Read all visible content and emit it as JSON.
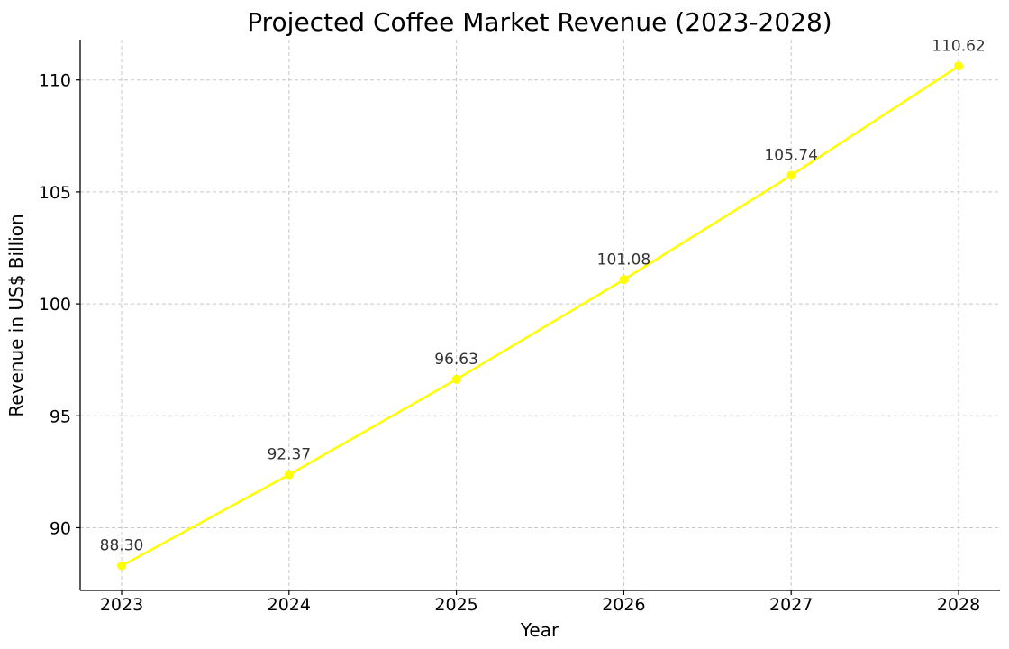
{
  "chart_data": {
    "type": "line",
    "title": "Projected Coffee Market Revenue (2023-2028)",
    "xlabel": "Year",
    "ylabel": "Revenue in US$ Billion",
    "x": [
      "2023",
      "2024",
      "2025",
      "2026",
      "2027",
      "2028"
    ],
    "series": [
      {
        "values": [
          88.3,
          92.37,
          96.63,
          101.08,
          105.74,
          110.62
        ],
        "labels": [
          "88.30",
          "92.37",
          "96.63",
          "101.08",
          "105.74",
          "110.62"
        ],
        "color": "#ffff00"
      }
    ],
    "yticks": [
      90,
      95,
      100,
      105,
      110
    ],
    "ylim": [
      87.2,
      111.8
    ],
    "grid": true,
    "legend": "none"
  }
}
